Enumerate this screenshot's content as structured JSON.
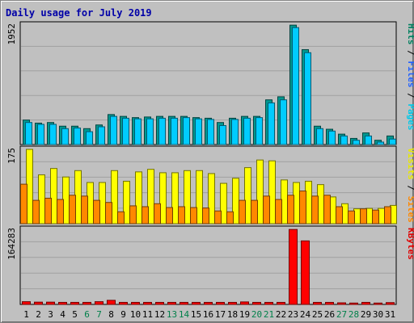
{
  "title": "Daily usage for July 2019",
  "chart_data": [
    {
      "type": "bar",
      "panel": "hits",
      "y_max_label": "1952",
      "ylim": [
        0,
        1952
      ],
      "grid": true,
      "legend": [
        {
          "label": "Pages",
          "color": "#00c8e8"
        },
        {
          "label": "Files",
          "color": "#2060ff"
        },
        {
          "label": "Hits",
          "color": "#008060"
        }
      ],
      "series": [
        {
          "name": "Hits",
          "color": "#009890",
          "values": [
            400,
            350,
            360,
            300,
            300,
            260,
            320,
            490,
            460,
            440,
            450,
            460,
            460,
            460,
            440,
            430,
            360,
            430,
            460,
            460,
            730,
            780,
            1950,
            1550,
            300,
            250,
            170,
            100,
            190,
            70,
            140
          ]
        },
        {
          "name": "Pages",
          "color": "#00ccff",
          "values": [
            360,
            330,
            330,
            260,
            270,
            210,
            290,
            460,
            430,
            420,
            420,
            430,
            430,
            440,
            420,
            410,
            310,
            410,
            430,
            440,
            680,
            730,
            1910,
            1500,
            260,
            220,
            140,
            70,
            140,
            40,
            90
          ]
        }
      ]
    },
    {
      "type": "bar",
      "panel": "visits",
      "y_max_label": "175",
      "ylim": [
        0,
        175
      ],
      "grid": true,
      "legend": [
        {
          "label": "Sites",
          "color": "#ff8800"
        },
        {
          "label": "Visits",
          "color": "#e8e800"
        }
      ],
      "series": [
        {
          "name": "Visits",
          "color": "#ffff00",
          "values": [
            175,
            115,
            130,
            110,
            125,
            97,
            97,
            125,
            100,
            122,
            128,
            120,
            120,
            125,
            125,
            118,
            95,
            107,
            132,
            150,
            148,
            103,
            97,
            100,
            92,
            63,
            47,
            35,
            36,
            36,
            43
          ]
        },
        {
          "name": "Sites",
          "color": "#ff8800",
          "values": [
            93,
            55,
            60,
            57,
            67,
            65,
            55,
            50,
            28,
            42,
            40,
            47,
            38,
            40,
            38,
            37,
            30,
            28,
            55,
            55,
            65,
            57,
            67,
            77,
            65,
            67,
            40,
            30,
            35,
            32,
            40
          ]
        }
      ]
    },
    {
      "type": "bar",
      "panel": "kbytes",
      "y_max_label": "164283",
      "ylim": [
        0,
        164283
      ],
      "grid": true,
      "legend": [
        {
          "label": "KBytes",
          "color": "#e00000"
        }
      ],
      "series": [
        {
          "name": "KBytes",
          "color": "#ff0000",
          "values": [
            6000,
            5000,
            5000,
            4500,
            4500,
            4500,
            6000,
            9000,
            4500,
            4500,
            4500,
            4500,
            4500,
            4500,
            4500,
            4500,
            4500,
            4500,
            5500,
            4500,
            4500,
            4500,
            164000,
            139000,
            4500,
            4500,
            3500,
            3000,
            4500,
            3000,
            4000
          ]
        }
      ]
    }
  ],
  "x_labels": [
    "1",
    "2",
    "3",
    "4",
    "5",
    "6",
    "7",
    "8",
    "9",
    "10",
    "11",
    "12",
    "13",
    "14",
    "15",
    "16",
    "17",
    "18",
    "19",
    "20",
    "21",
    "22",
    "23",
    "24",
    "25",
    "26",
    "27",
    "28",
    "29",
    "30",
    "31"
  ],
  "weekend_days": [
    6,
    7,
    13,
    14,
    20,
    21,
    27,
    28
  ],
  "colors": {
    "weekday_label": "#000000",
    "weekend_label": "#00804a",
    "title": "#0000a8",
    "grid": "#a0a0a0",
    "panel_bg": "#c0c0c0"
  }
}
